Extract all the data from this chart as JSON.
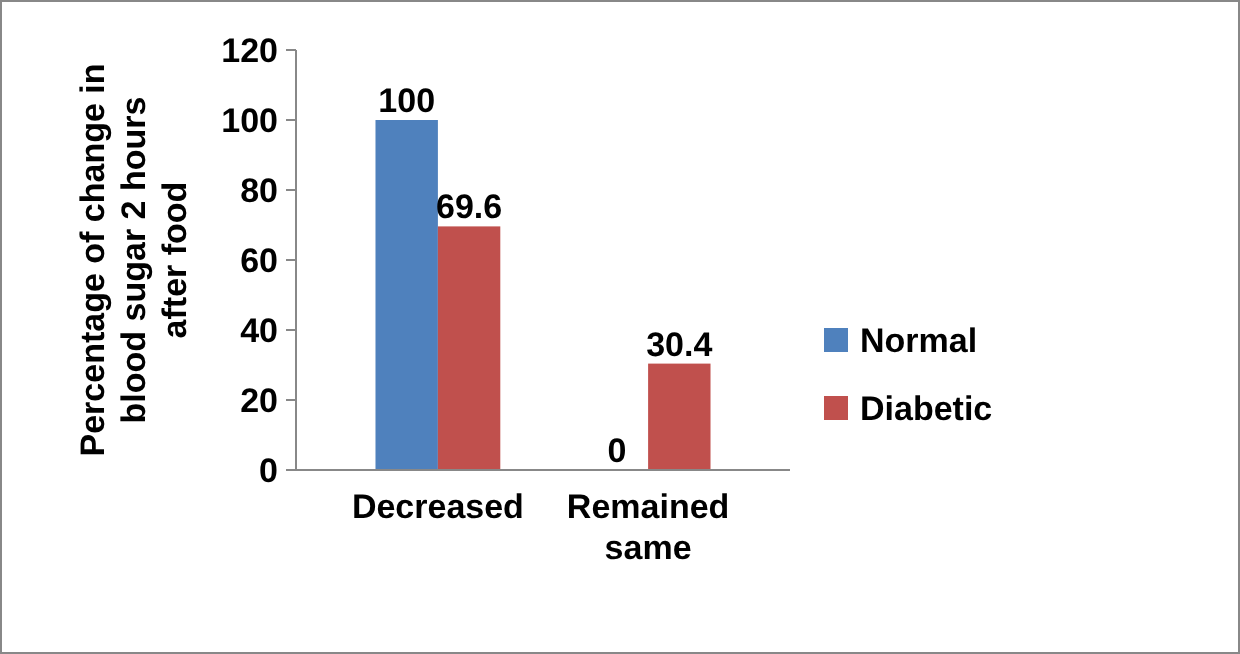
{
  "chart_data": {
    "type": "bar",
    "ylabel": "Percentage of change in blood sugar 2 hours after food",
    "categories": [
      "Decreased",
      "Remained same"
    ],
    "series": [
      {
        "name": "Normal",
        "color": "#4f81bd",
        "values": [
          100,
          0
        ]
      },
      {
        "name": "Diabetic",
        "color": "#c0504d",
        "values": [
          69.6,
          30.4
        ]
      }
    ],
    "ylim": [
      0,
      120
    ],
    "yticks": [
      0,
      20,
      40,
      60,
      80,
      100,
      120
    ],
    "grid": false,
    "legend": "right",
    "data_labels": true
  }
}
